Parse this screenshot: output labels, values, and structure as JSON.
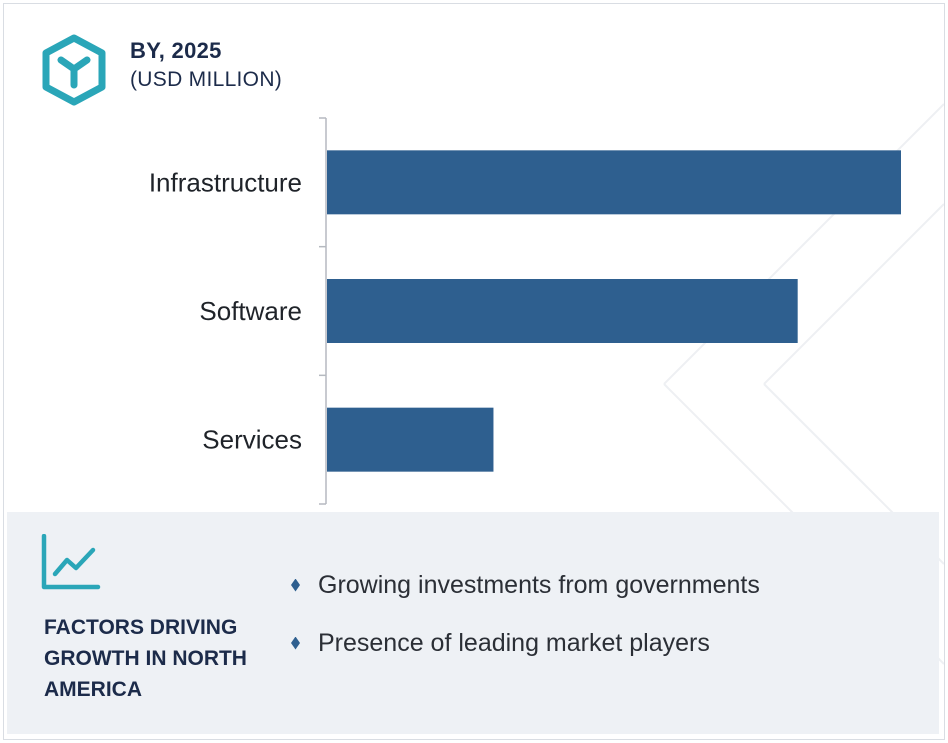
{
  "header": {
    "title": "BY, 2025",
    "subtitle": "(USD MILLION)",
    "icon": "cube-logo-icon",
    "icon_color": "#2aa6b8"
  },
  "chart_data": {
    "type": "bar",
    "orientation": "horizontal",
    "categories": [
      "Infrastructure",
      "Software",
      "Services"
    ],
    "values": [
      100,
      82,
      29
    ],
    "value_scale": "relative (no axis values shown)",
    "title": "BY, 2025",
    "subtitle": "(USD MILLION)",
    "xlabel": "",
    "ylabel": "",
    "xlim": [
      0,
      100
    ],
    "grid": false,
    "legend": "none",
    "bar_color": "#2e5f8f"
  },
  "factors": {
    "icon": "line-chart-icon",
    "title": "FACTORS DRIVING GROWTH IN NORTH AMERICA",
    "items": [
      "Growing investments from governments",
      "Presence of leading market players"
    ]
  }
}
